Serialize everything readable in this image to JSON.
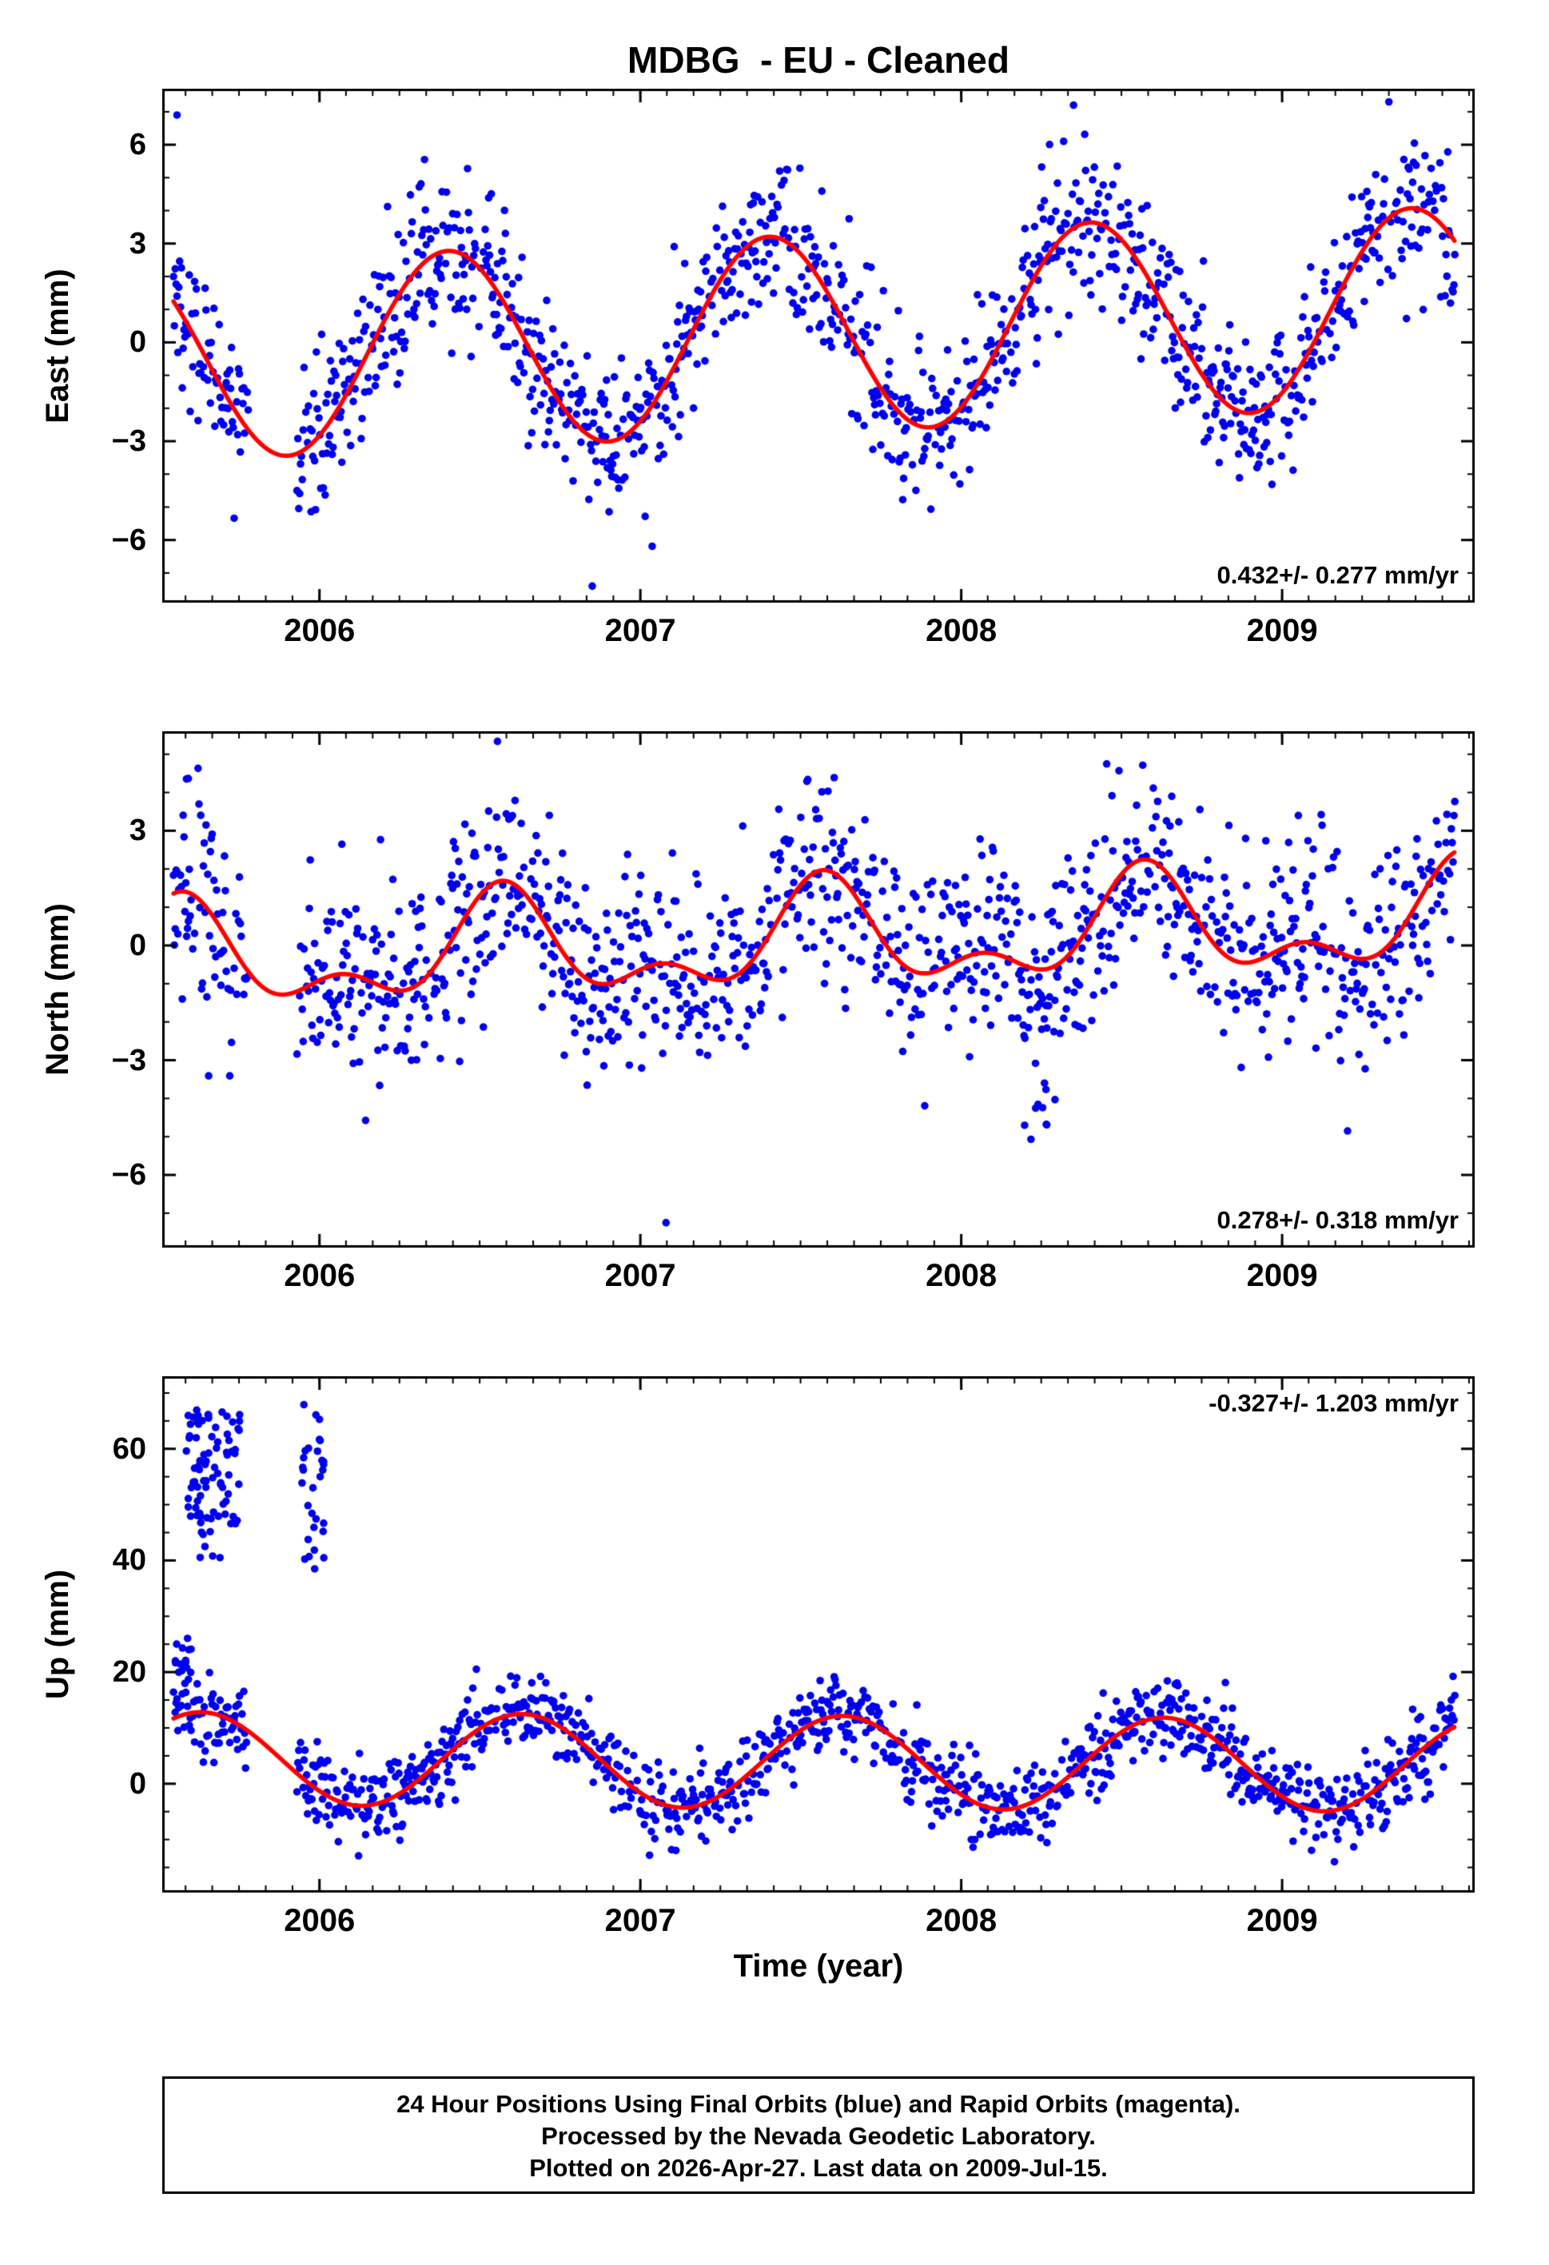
{
  "title": "MDBG  - EU - Cleaned",
  "station": "MDBG",
  "reference_frame": "EU",
  "xlabel": "Time (year)",
  "footer": {
    "line1": "24 Hour Positions Using Final Orbits (blue) and Rapid Orbits (magenta).",
    "line2": "Processed by the Nevada Geodetic Laboratory.",
    "line3": "Plotted on 2026-Apr-27. Last data on 2009-Jul-15."
  },
  "colors": {
    "points": "#0000f0",
    "model": "#ff0000",
    "frame": "#000000",
    "background": "#ffffff"
  },
  "chart_data": [
    {
      "type": "scatter",
      "component": "East",
      "ylabel": "East (mm)",
      "annotation": "0.432+/- 0.277 mm/yr",
      "rate_mm_yr": 0.432,
      "rate_sigma_mm_yr": 0.277,
      "annotation_pos": "bottom-right",
      "xlim": [
        2005.51,
        2009.6
      ],
      "ylim": [
        -7.9,
        7.7
      ],
      "xticks": [
        2006,
        2007,
        2008,
        2009
      ],
      "yticks": [
        6,
        3,
        0,
        -3,
        -6
      ],
      "xtick_minor": 0.0833333,
      "ytick_minor": 1,
      "segments": [
        [
          2005.545,
          2005.78
        ],
        [
          2005.93,
          2009.54
        ]
      ],
      "sample_keep": 0.82,
      "noise_sigma": 1.15,
      "seed": 42,
      "model": {
        "t0": 2007.5,
        "offset": 0.25,
        "trend": 0.432,
        "annual_amp": 3.0,
        "annual_phase": 0.4,
        "semi_amp": 0,
        "semi_phase": 0
      },
      "outliers": [
        [
          2006.85,
          -7.4
        ],
        [
          2005.556,
          6.9
        ],
        [
          2008.35,
          7.2
        ]
      ],
      "clusters": []
    },
    {
      "type": "scatter",
      "component": "North",
      "ylabel": "North (mm)",
      "annotation": "0.278+/- 0.318 mm/yr",
      "rate_mm_yr": 0.278,
      "rate_sigma_mm_yr": 0.318,
      "annotation_pos": "bottom-right",
      "xlim": [
        2005.51,
        2009.6
      ],
      "ylim": [
        -7.9,
        5.6
      ],
      "xticks": [
        2006,
        2007,
        2008,
        2009
      ],
      "yticks": [
        3,
        0,
        -3,
        -6
      ],
      "xtick_minor": 0.0833333,
      "ytick_minor": 1,
      "segments": [
        [
          2005.545,
          2005.78
        ],
        [
          2005.93,
          2009.54
        ]
      ],
      "sample_keep": 0.82,
      "noise_sigma": 1.35,
      "seed": 7,
      "model": {
        "t0": 2007.5,
        "offset": 0.1,
        "trend": 0.278,
        "annual_amp": 1.15,
        "annual_phase": 0.57,
        "semi_amp": 0.7,
        "semi_phase": 0.57
      },
      "outliers": [
        [
          2007.08,
          -7.25
        ]
      ],
      "clusters": [
        {
          "t": [
            2008.18,
            2008.32
          ],
          "y": [
            -5.1,
            -3.2
          ],
          "count": 10
        },
        {
          "t": [
            2005.585,
            2005.6
          ],
          "y": [
            4.2,
            4.8
          ],
          "count": 2
        }
      ]
    },
    {
      "type": "scatter",
      "component": "Up",
      "ylabel": "Up (mm)",
      "annotation": "-0.327+/- 1.203 mm/yr",
      "rate_mm_yr": -0.327,
      "rate_sigma_mm_yr": 1.203,
      "annotation_pos": "top-right",
      "xlim": [
        2005.51,
        2009.6
      ],
      "ylim": [
        -19.5,
        73
      ],
      "xticks": [
        2006,
        2007,
        2008,
        2009
      ],
      "yticks": [
        60,
        40,
        20,
        0
      ],
      "xtick_minor": 0.0833333,
      "ytick_minor": 5,
      "segments": [
        [
          2005.545,
          2005.78
        ],
        [
          2005.93,
          2009.54
        ]
      ],
      "sample_keep": 0.82,
      "noise_sigma": 3.7,
      "seed": 1234,
      "model": {
        "t0": 2007.5,
        "offset": 3.9,
        "trend": -0.327,
        "annual_amp": 8.3,
        "annual_phase": 0.63,
        "semi_amp": 0,
        "semi_phase": 0
      },
      "outliers": [
        [
          2005.69,
          40.5
        ]
      ],
      "clusters": [
        {
          "t": [
            2005.585,
            2005.76
          ],
          "y": [
            46,
            67
          ],
          "count": 80
        },
        {
          "t": [
            2005.6,
            2005.67
          ],
          "y": [
            40,
            47
          ],
          "count": 6
        },
        {
          "t": [
            2005.55,
            2005.6
          ],
          "y": [
            17,
            28
          ],
          "count": 12
        },
        {
          "t": [
            2005.945,
            2006.015
          ],
          "y": [
            38,
            68
          ],
          "count": 30
        }
      ]
    }
  ]
}
